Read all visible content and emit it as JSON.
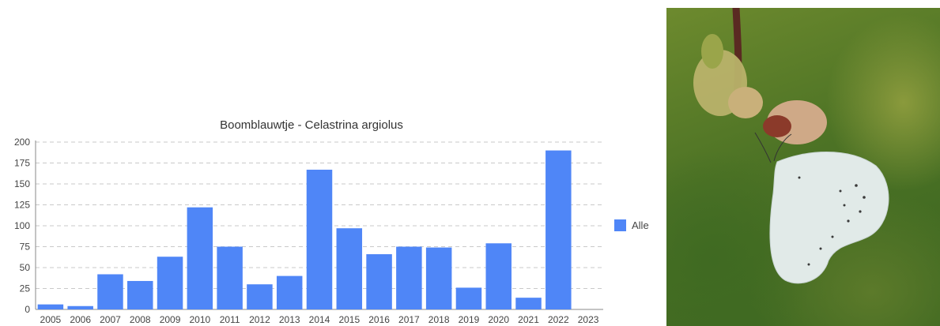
{
  "chart_data": {
    "type": "bar",
    "title": "Boomblauwtje - Celastrina argiolus",
    "categories": [
      "2005",
      "2006",
      "2007",
      "2008",
      "2009",
      "2010",
      "2011",
      "2012",
      "2013",
      "2014",
      "2015",
      "2016",
      "2017",
      "2018",
      "2019",
      "2020",
      "2021",
      "2022",
      "2023"
    ],
    "series": [
      {
        "name": "Alle",
        "values": [
          6,
          4,
          42,
          34,
          63,
          122,
          75,
          30,
          40,
          167,
          97,
          66,
          75,
          74,
          26,
          79,
          14,
          190,
          0
        ]
      }
    ],
    "ylim": [
      0,
      200
    ],
    "yticks": [
      0,
      25,
      50,
      75,
      100,
      125,
      150,
      175,
      200
    ],
    "grid": true,
    "legend_position": "right",
    "colors": {
      "bar": "#4f86f7",
      "grid": "#c9c9c9",
      "axis": "#444444",
      "text": "#444444"
    }
  },
  "photo": {
    "subject": "butterfly-on-twig",
    "colors": {
      "wing": "#dfe8e6",
      "twig": "#5a2a22",
      "bud": "#c9b07a"
    }
  }
}
